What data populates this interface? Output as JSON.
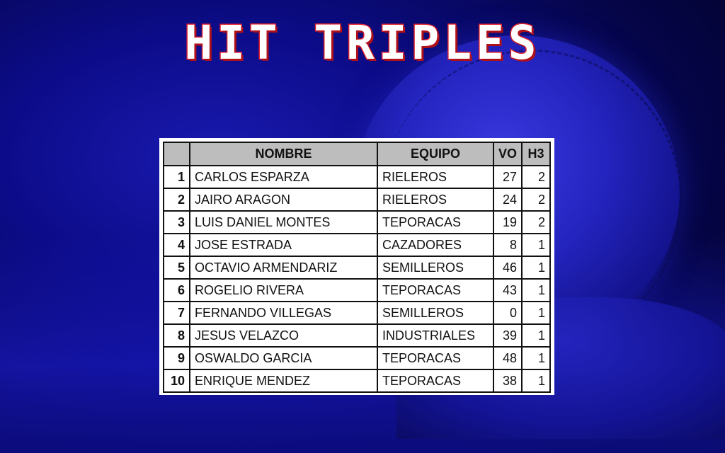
{
  "title": "HIT TRIPLES",
  "table": {
    "headers": [
      "",
      "NOMBRE",
      "EQUIPO",
      "VO",
      "H3"
    ],
    "rows": [
      {
        "rank": "1",
        "name": "CARLOS ESPARZA",
        "team": "RIELEROS",
        "vo": "27",
        "h3": "2"
      },
      {
        "rank": "2",
        "name": "JAIRO ARAGON",
        "team": "RIELEROS",
        "vo": "24",
        "h3": "2"
      },
      {
        "rank": "3",
        "name": "LUIS DANIEL MONTES",
        "team": "TEPORACAS",
        "vo": "19",
        "h3": "2"
      },
      {
        "rank": "4",
        "name": "JOSE ESTRADA",
        "team": "CAZADORES",
        "vo": "8",
        "h3": "1"
      },
      {
        "rank": "5",
        "name": "OCTAVIO ARMENDARIZ",
        "team": "SEMILLEROS",
        "vo": "46",
        "h3": "1"
      },
      {
        "rank": "6",
        "name": "ROGELIO RIVERA",
        "team": "TEPORACAS",
        "vo": "43",
        "h3": "1"
      },
      {
        "rank": "7",
        "name": "FERNANDO VILLEGAS",
        "team": "SEMILLEROS",
        "vo": "0",
        "h3": "1"
      },
      {
        "rank": "8",
        "name": "JESUS VELAZCO",
        "team": "INDUSTRIALES",
        "vo": "39",
        "h3": "1"
      },
      {
        "rank": "9",
        "name": "OSWALDO GARCIA",
        "team": "TEPORACAS",
        "vo": "48",
        "h3": "1"
      },
      {
        "rank": "10",
        "name": "ENRIQUE MENDEZ",
        "team": "TEPORACAS",
        "vo": "38",
        "h3": "1"
      }
    ]
  }
}
